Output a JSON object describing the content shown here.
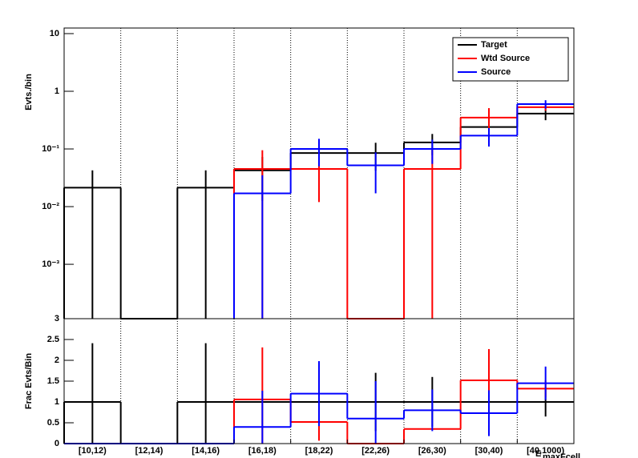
{
  "chart_data": [
    {
      "type": "step",
      "y_label": "Evts./bin",
      "log_y": true,
      "grid_x": true,
      "legend": "top-right",
      "ylim": [
        0.000114,
        12.5
      ],
      "yticks": [
        10,
        1,
        {
          "value": 0.1,
          "label": "10⁻¹"
        },
        {
          "value": 0.01,
          "label": "10⁻²"
        },
        {
          "value": 0.001,
          "label": "10⁻³"
        }
      ],
      "series": [
        {
          "name": "Target",
          "color": "#000000",
          "values": [
            0.0213,
            0,
            0.0213,
            0.0426,
            0.085,
            0.085,
            0.13,
            0.24,
            0.41
          ],
          "errors": [
            0.0213,
            null,
            0.0213,
            0.03,
            0.043,
            0.043,
            0.052,
            0.07,
            0.095
          ]
        },
        {
          "name": "Wtd Source",
          "color": "#ff0000",
          "values": [
            null,
            null,
            null,
            0.045,
            0.045,
            0,
            0.045,
            0.35,
            0.53
          ],
          "errors": [
            null,
            null,
            null,
            0.05,
            0.033,
            null,
            0.06,
            0.16,
            0.07
          ]
        },
        {
          "name": "Source",
          "color": "#0000ff",
          "values": [
            null,
            null,
            null,
            0.017,
            0.1,
            0.052,
            0.1,
            0.17,
            0.6
          ],
          "errors": [
            null,
            null,
            null,
            0.018,
            0.05,
            0.035,
            0.045,
            0.06,
            0.1
          ]
        }
      ]
    },
    {
      "type": "step",
      "y_label": "Frac Evts/Bin",
      "log_y": false,
      "grid_x": true,
      "x_label": "E",
      "x_label_sub": "maxFcell",
      "categories": [
        "[10,12)",
        "[12,14)",
        "[14,16)",
        "[16,18)",
        "[18,22)",
        "[22,26)",
        "[26,30)",
        "[30,40)",
        "[40,1000)"
      ],
      "ylim": [
        0,
        3
      ],
      "yticks": [
        0,
        0.5,
        1,
        1.5,
        2,
        2.5,
        3
      ],
      "series": [
        {
          "color": "#000000",
          "values": [
            1,
            0,
            1,
            1,
            1,
            1,
            1,
            1,
            1
          ],
          "errors": [
            1.41,
            null,
            1.41,
            null,
            null,
            0.7,
            0.6,
            null,
            0.35
          ]
        },
        {
          "color": "#ff0000",
          "values": [
            0,
            0,
            0,
            1.06,
            0.52,
            0,
            0.35,
            1.52,
            1.32
          ],
          "errors": [
            null,
            null,
            null,
            1.25,
            0.45,
            null,
            null,
            0.75,
            0.2
          ]
        },
        {
          "color": "#0000ff",
          "values": [
            0,
            0,
            0,
            0.4,
            1.2,
            0.6,
            0.8,
            0.73,
            1.45
          ],
          "errors": [
            null,
            null,
            null,
            0.87,
            0.78,
            0.9,
            0.5,
            0.55,
            0.4
          ]
        }
      ]
    }
  ]
}
